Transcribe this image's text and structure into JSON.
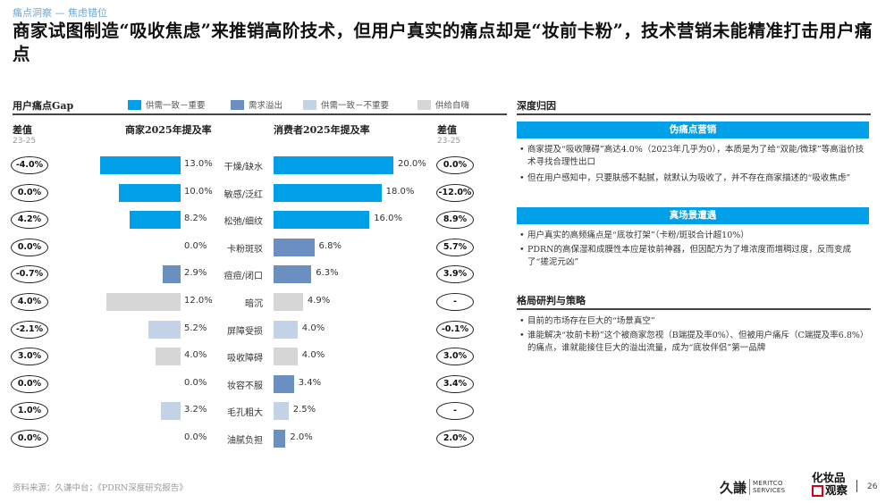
{
  "breadcrumb": "痛点洞察 — 焦虑错位",
  "title": "商家试图制造“吸收焦虑”来推销高阶技术，但用户真实的痛点却是“妆前卡粉”，技术营销未能精准打击用户痛点",
  "left_section_title": "用户痛点Gap",
  "legend": [
    {
      "label": "供需一致－重要",
      "color": "#00a0e9"
    },
    {
      "label": "需求溢出",
      "color": "#6b8fc0"
    },
    {
      "label": "供需一致－不重要",
      "color": "#c3d2e6"
    },
    {
      "label": "供给自嗨",
      "color": "#d6d6d6"
    }
  ],
  "col_headers": {
    "diff_left": "差值",
    "diff_left_sub": "23-25",
    "merchant": "商家2025年提及率",
    "consumer": "消费者2025年提及率",
    "diff_right": "差值",
    "diff_right_sub": "23-25"
  },
  "chart_data": {
    "type": "bar",
    "categories": [
      "干燥/缺水",
      "敏感/泛红",
      "松弛/细纹",
      "卡粉斑驳",
      "痘痘/闭口",
      "暗沉",
      "屏障受损",
      "吸收障碍",
      "妆容不服",
      "毛孔粗大",
      "油腻负担"
    ],
    "series": [
      {
        "name": "商家2025年提及率",
        "values": [
          13.0,
          10.0,
          8.2,
          0.0,
          2.9,
          12.0,
          5.2,
          4.0,
          0.0,
          3.2,
          0.0
        ],
        "labels": [
          "13.0%",
          "10.0%",
          "8.2%",
          "0.0%",
          "2.9%",
          "12.0%",
          "5.2%",
          "4.0%",
          "0.0%",
          "3.2%",
          "0.0%"
        ]
      },
      {
        "name": "消费者2025年提及率",
        "values": [
          20.0,
          18.0,
          16.0,
          6.8,
          6.3,
          4.9,
          4.0,
          4.0,
          3.4,
          2.5,
          2.0
        ],
        "labels": [
          "20.0%",
          "18.0%",
          "16.0%",
          "6.8%",
          "6.3%",
          "4.9%",
          "4.0%",
          "4.0%",
          "3.4%",
          "2.5%",
          "2.0%"
        ]
      }
    ],
    "row_colors": [
      "#00a0e9",
      "#00a0e9",
      "#00a0e9",
      "#6b8fc0",
      "#6b8fc0",
      "#d6d6d6",
      "#c3d2e6",
      "#d6d6d6",
      "#6b8fc0",
      "#c3d2e6",
      "#6b8fc0"
    ],
    "merchant_diff": [
      "-4.0%",
      "0.0%",
      "4.2%",
      "0.0%",
      "-0.7%",
      "4.0%",
      "-2.1%",
      "3.0%",
      "0.0%",
      "1.0%",
      "0.0%"
    ],
    "consumer_diff": [
      "0.0%",
      "-12.0%",
      "8.9%",
      "5.7%",
      "3.9%",
      "-",
      "-0.1%",
      "3.0%",
      "3.4%",
      "-",
      "2.0%"
    ]
  },
  "right_section_title": "深度归因",
  "pseudo": {
    "head": "伪痛点营销",
    "bullets": [
      "商家提及“吸收障碍”高达4.0%（2023年几乎为0），本质是为了给“双能/微球”等高溢价技术寻找合理性出口",
      "但在用户感知中，只要肤感不黏腻，就默认为吸收了，并不存在商家描述的“吸收焦虑”"
    ]
  },
  "real": {
    "head": "真场景遭遇",
    "bullets": [
      "用户真实的高频痛点是“底妆打架”（卡粉/斑驳合计超10%）",
      "PDRN的高保湿和成膜性本应是妆前神器，但因配方为了堆浓度而增稠过度，反而变成了“搓泥元凶”"
    ]
  },
  "strategy": {
    "title": "格局研判与策略",
    "bullets": [
      "目前的市场存在巨大的“场景真空”",
      "谁能解决“妆前卡粉”这个被商家忽视（B端提及率0%）、但被用户痛斥（C端提及率6.8%）的痛点，谁就能接住巨大的溢出流量，成为“底妆伴侣”第一品牌"
    ]
  },
  "source": "资料来源：久谦中台；《PDRN深度研究报告》",
  "footer": {
    "logo1_cn": "久謙",
    "logo1_en1": "MERITCO",
    "logo1_en2": "SERVICES",
    "logo2_line1": "化妆品",
    "logo2_line2": "观察",
    "page": "26"
  }
}
